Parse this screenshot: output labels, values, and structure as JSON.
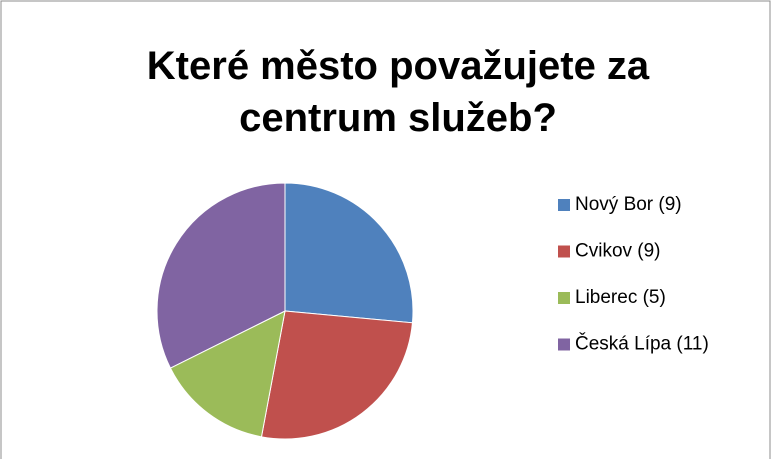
{
  "chart_data": {
    "type": "pie",
    "title": "Které město považujete za centrum služeb?",
    "categories": [
      "Nový Bor (9)",
      "Cvikov (9)",
      "Liberec (5)",
      "Česká Lípa (11)"
    ],
    "values": [
      9,
      9,
      5,
      11
    ],
    "colors": [
      "#4f81bd",
      "#c0504d",
      "#9bbb59",
      "#8064a2"
    ],
    "legend": "right"
  }
}
